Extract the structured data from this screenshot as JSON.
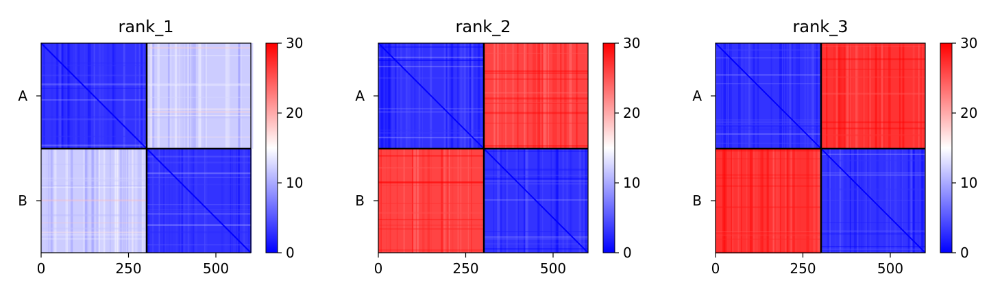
{
  "chart_data": [
    {
      "type": "heatmap",
      "title": "rank_1",
      "xticks": [
        0,
        250,
        500
      ],
      "xlim": [
        0,
        600
      ],
      "chains": [
        "A",
        "B"
      ],
      "chain_boundary": 302,
      "colorbar": {
        "min": 0,
        "max": 30,
        "ticks": [
          0,
          10,
          20,
          30
        ],
        "colormap": "bwr"
      },
      "blocks": [
        {
          "rows": "A",
          "cols": "A",
          "mean_value": 3
        },
        {
          "rows": "A",
          "cols": "B",
          "mean_value": 12
        },
        {
          "rows": "B",
          "cols": "A",
          "mean_value": 12
        },
        {
          "rows": "B",
          "cols": "B",
          "mean_value": 3
        }
      ]
    },
    {
      "type": "heatmap",
      "title": "rank_2",
      "xticks": [
        0,
        250,
        500
      ],
      "xlim": [
        0,
        600
      ],
      "chains": [
        "A",
        "B"
      ],
      "chain_boundary": 302,
      "colorbar": {
        "min": 0,
        "max": 30,
        "ticks": [
          0,
          10,
          20,
          30
        ],
        "colormap": "bwr"
      },
      "blocks": [
        {
          "rows": "A",
          "cols": "A",
          "mean_value": 3
        },
        {
          "rows": "A",
          "cols": "B",
          "mean_value": 26
        },
        {
          "rows": "B",
          "cols": "A",
          "mean_value": 26
        },
        {
          "rows": "B",
          "cols": "B",
          "mean_value": 3
        }
      ]
    },
    {
      "type": "heatmap",
      "title": "rank_3",
      "xticks": [
        0,
        250,
        500
      ],
      "xlim": [
        0,
        600
      ],
      "chains": [
        "A",
        "B"
      ],
      "chain_boundary": 302,
      "colorbar": {
        "min": 0,
        "max": 30,
        "ticks": [
          0,
          10,
          20,
          30
        ],
        "colormap": "bwr"
      },
      "blocks": [
        {
          "rows": "A",
          "cols": "A",
          "mean_value": 3
        },
        {
          "rows": "A",
          "cols": "B",
          "mean_value": 27
        },
        {
          "rows": "B",
          "cols": "A",
          "mean_value": 27
        },
        {
          "rows": "B",
          "cols": "B",
          "mean_value": 3
        }
      ]
    }
  ]
}
